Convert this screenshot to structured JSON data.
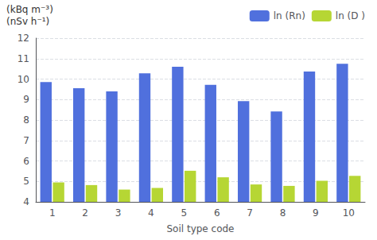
{
  "chart_data": {
    "type": "bar",
    "categories": [
      "1",
      "2",
      "3",
      "4",
      "5",
      "6",
      "7",
      "8",
      "9",
      "10"
    ],
    "series": [
      {
        "name": "ln (Rn)",
        "values": [
          9.85,
          9.55,
          9.4,
          10.28,
          10.6,
          9.72,
          8.92,
          8.42,
          10.37,
          10.75
        ]
      },
      {
        "name": "ln (D )",
        "values": [
          4.95,
          4.82,
          4.6,
          4.68,
          5.52,
          5.2,
          4.85,
          4.78,
          5.03,
          5.27
        ]
      }
    ],
    "xlabel": "Soil type code",
    "annotations": [
      "(kBq m⁻³)",
      "(nSv h⁻¹)"
    ],
    "ylim": [
      4,
      12
    ],
    "yticks": [
      4,
      5,
      6,
      7,
      8,
      9,
      10,
      11,
      12
    ],
    "grid": true,
    "legend": "upper right"
  }
}
